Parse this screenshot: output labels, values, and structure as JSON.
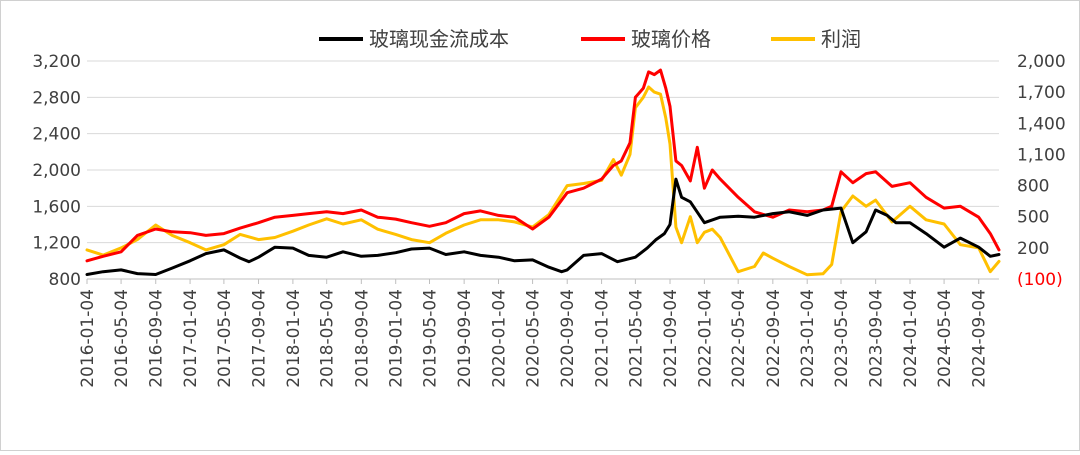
{
  "chart_data": {
    "type": "line",
    "title": "",
    "xlabel": "",
    "ylabel": "",
    "legend_position": "top",
    "grid": true,
    "colors": {
      "cost": "#000000",
      "price": "#ff0000",
      "profit": "#ffc000"
    },
    "y_left": {
      "min": 800,
      "max": 3200,
      "ticks": [
        "800",
        "1,200",
        "1,600",
        "2,000",
        "2,400",
        "2,800",
        "3,200"
      ]
    },
    "y_right": {
      "min": -100,
      "max": 2000,
      "ticks": [
        "(100)",
        "200",
        "500",
        "800",
        "1,100",
        "1,400",
        "1,700",
        "2,000"
      ]
    },
    "x_tick_labels": [
      "2016-01-04",
      "2016-05-04",
      "2016-09-04",
      "2017-01-04",
      "2017-05-04",
      "2017-09-04",
      "2018-01-04",
      "2018-05-04",
      "2018-09-04",
      "2019-01-04",
      "2019-05-04",
      "2019-09-04",
      "2020-01-04",
      "2020-05-04",
      "2020-09-04",
      "2021-01-04",
      "2021-05-04",
      "2021-09-04",
      "2022-01-04",
      "2022-05-04",
      "2022-09-04",
      "2023-01-04",
      "2023-05-04",
      "2023-09-04",
      "2024-01-04",
      "2024-05-04",
      "2024-09-04"
    ],
    "series": [
      {
        "key": "cost",
        "name": "玻璃现金流成本",
        "axis": "left",
        "x": [
          "2016-01-04",
          "2016-03-01",
          "2016-05-04",
          "2016-07-01",
          "2016-09-04",
          "2016-11-01",
          "2017-01-04",
          "2017-03-01",
          "2017-05-04",
          "2017-07-01",
          "2017-08-01",
          "2017-09-04",
          "2017-11-01",
          "2018-01-04",
          "2018-03-01",
          "2018-05-04",
          "2018-07-01",
          "2018-09-04",
          "2018-11-01",
          "2019-01-04",
          "2019-03-01",
          "2019-05-04",
          "2019-07-01",
          "2019-09-04",
          "2019-11-01",
          "2020-01-04",
          "2020-03-01",
          "2020-05-04",
          "2020-07-01",
          "2020-08-15",
          "2020-09-04",
          "2020-11-01",
          "2021-01-04",
          "2021-03-01",
          "2021-05-04",
          "2021-06-15",
          "2021-07-15",
          "2021-08-15",
          "2021-09-04",
          "2021-09-25",
          "2021-10-15",
          "2021-11-15",
          "2022-01-04",
          "2022-03-01",
          "2022-05-04",
          "2022-07-01",
          "2022-09-04",
          "2022-11-01",
          "2023-01-04",
          "2023-03-01",
          "2023-05-04",
          "2023-06-15",
          "2023-08-01",
          "2023-09-04",
          "2023-10-15",
          "2023-11-15",
          "2024-01-04",
          "2024-03-01",
          "2024-05-04",
          "2024-07-01",
          "2024-09-04",
          "2024-10-15",
          "2024-11-15"
        ],
        "values": [
          850,
          880,
          900,
          860,
          850,
          920,
          1000,
          1080,
          1120,
          1030,
          990,
          1040,
          1150,
          1140,
          1060,
          1040,
          1100,
          1050,
          1060,
          1090,
          1130,
          1140,
          1070,
          1100,
          1060,
          1040,
          1000,
          1010,
          930,
          880,
          900,
          1060,
          1080,
          990,
          1040,
          1140,
          1230,
          1300,
          1400,
          1900,
          1700,
          1650,
          1420,
          1480,
          1490,
          1480,
          1520,
          1540,
          1500,
          1560,
          1580,
          1200,
          1320,
          1560,
          1500,
          1420,
          1420,
          1300,
          1150,
          1250,
          1150,
          1050,
          1070
        ]
      },
      {
        "key": "price",
        "name": "玻璃价格",
        "axis": "left",
        "x": [
          "2016-01-04",
          "2016-03-01",
          "2016-05-04",
          "2016-07-01",
          "2016-09-04",
          "2016-11-01",
          "2017-01-04",
          "2017-03-01",
          "2017-05-04",
          "2017-07-01",
          "2017-09-04",
          "2017-11-01",
          "2018-01-04",
          "2018-03-01",
          "2018-05-04",
          "2018-07-01",
          "2018-09-04",
          "2018-11-01",
          "2019-01-04",
          "2019-03-01",
          "2019-05-04",
          "2019-07-01",
          "2019-09-04",
          "2019-11-01",
          "2020-01-04",
          "2020-03-01",
          "2020-05-04",
          "2020-07-01",
          "2020-09-04",
          "2020-11-01",
          "2021-01-04",
          "2021-02-15",
          "2021-03-15",
          "2021-04-15",
          "2021-05-04",
          "2021-06-01",
          "2021-06-20",
          "2021-07-10",
          "2021-08-01",
          "2021-08-20",
          "2021-09-04",
          "2021-09-25",
          "2021-10-15",
          "2021-11-15",
          "2021-12-10",
          "2022-01-04",
          "2022-02-01",
          "2022-03-01",
          "2022-05-04",
          "2022-07-01",
          "2022-09-04",
          "2022-11-01",
          "2023-01-04",
          "2023-03-01",
          "2023-04-01",
          "2023-05-04",
          "2023-06-15",
          "2023-08-01",
          "2023-09-04",
          "2023-11-01",
          "2024-01-04",
          "2024-03-01",
          "2024-05-04",
          "2024-07-01",
          "2024-09-04",
          "2024-10-15",
          "2024-11-15"
        ],
        "values": [
          1000,
          1050,
          1100,
          1280,
          1350,
          1320,
          1310,
          1280,
          1300,
          1360,
          1420,
          1480,
          1500,
          1520,
          1540,
          1520,
          1560,
          1480,
          1460,
          1420,
          1380,
          1420,
          1520,
          1550,
          1500,
          1480,
          1350,
          1480,
          1750,
          1800,
          1900,
          2050,
          2100,
          2300,
          2800,
          2900,
          3080,
          3050,
          3100,
          2900,
          2700,
          2100,
          2050,
          1880,
          2250,
          1800,
          2000,
          1900,
          1700,
          1540,
          1480,
          1560,
          1540,
          1560,
          1600,
          1980,
          1860,
          1960,
          1980,
          1820,
          1860,
          1700,
          1580,
          1600,
          1480,
          1300,
          1120
        ]
      },
      {
        "key": "profit",
        "name": "利润",
        "axis": "right",
        "x": [
          "2016-01-04",
          "2016-03-01",
          "2016-05-04",
          "2016-07-01",
          "2016-09-04",
          "2016-11-01",
          "2017-01-04",
          "2017-03-01",
          "2017-05-04",
          "2017-07-01",
          "2017-09-04",
          "2017-11-01",
          "2018-01-04",
          "2018-03-01",
          "2018-05-04",
          "2018-07-01",
          "2018-09-04",
          "2018-11-01",
          "2019-01-04",
          "2019-03-01",
          "2019-05-04",
          "2019-07-01",
          "2019-09-04",
          "2019-11-01",
          "2020-01-04",
          "2020-03-01",
          "2020-05-04",
          "2020-07-01",
          "2020-09-04",
          "2020-11-01",
          "2021-01-04",
          "2021-02-15",
          "2021-03-15",
          "2021-04-15",
          "2021-05-04",
          "2021-06-01",
          "2021-06-20",
          "2021-07-10",
          "2021-08-01",
          "2021-08-20",
          "2021-09-04",
          "2021-09-25",
          "2021-10-15",
          "2021-11-15",
          "2021-12-10",
          "2022-01-04",
          "2022-02-01",
          "2022-03-01",
          "2022-05-04",
          "2022-07-01",
          "2022-08-01",
          "2022-09-04",
          "2022-11-01",
          "2023-01-04",
          "2023-03-01",
          "2023-04-01",
          "2023-05-04",
          "2023-06-15",
          "2023-08-01",
          "2023-09-04",
          "2023-11-01",
          "2024-01-04",
          "2024-03-01",
          "2024-05-04",
          "2024-07-01",
          "2024-09-04",
          "2024-10-15",
          "2024-11-15"
        ],
        "values": [
          180,
          130,
          200,
          280,
          420,
          320,
          250,
          180,
          230,
          330,
          280,
          300,
          360,
          420,
          480,
          430,
          470,
          380,
          330,
          280,
          250,
          340,
          420,
          470,
          470,
          450,
          400,
          520,
          800,
          820,
          850,
          1050,
          900,
          1100,
          1550,
          1650,
          1750,
          1700,
          1680,
          1450,
          1200,
          400,
          250,
          500,
          250,
          350,
          380,
          300,
          -30,
          20,
          150,
          100,
          20,
          -60,
          -50,
          40,
          550,
          700,
          600,
          660,
          450,
          600,
          470,
          430,
          230,
          200,
          -30,
          70
        ]
      }
    ]
  }
}
